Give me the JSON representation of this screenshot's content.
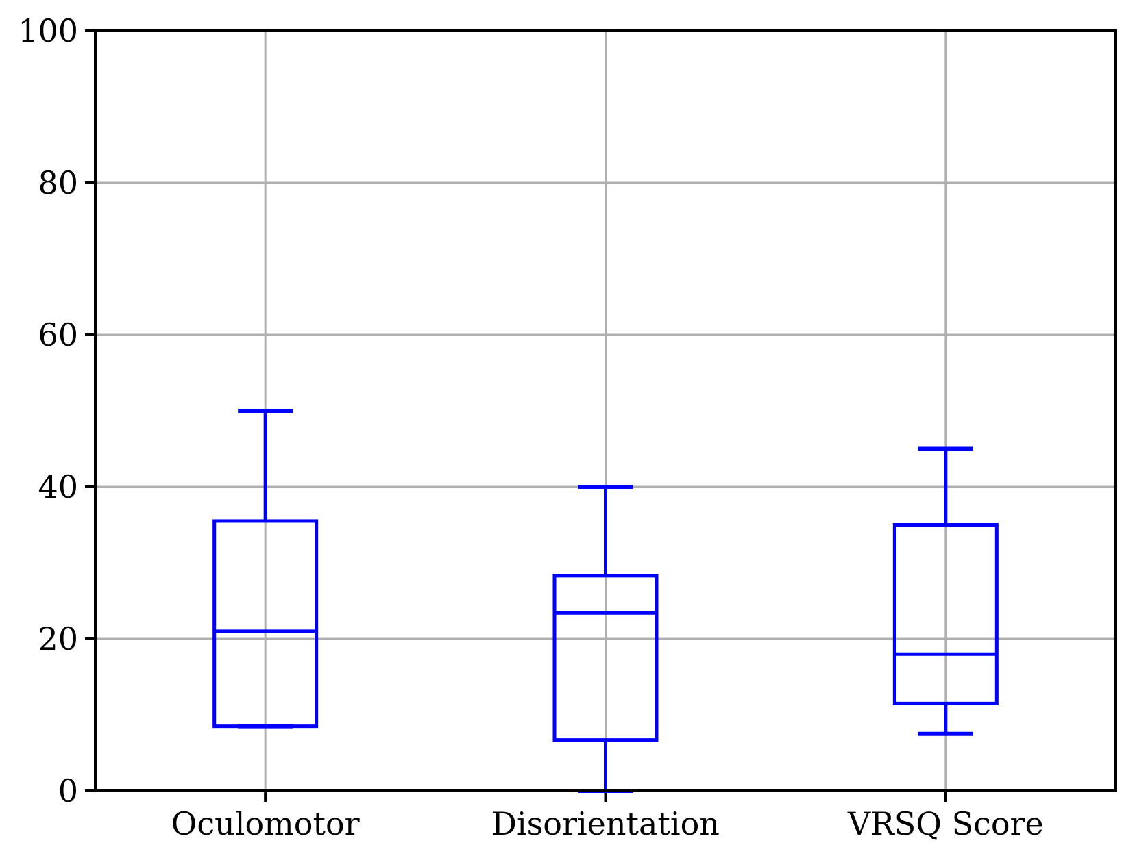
{
  "chart_data": {
    "type": "boxplot",
    "title": "",
    "xlabel": "",
    "ylabel": "",
    "categories": [
      "Oculomotor",
      "Disorientation",
      "VRSQ Score"
    ],
    "series": [
      {
        "name": "Oculomotor",
        "whisker_low": 8.5,
        "q1": 8.5,
        "median": 21,
        "q3": 35.5,
        "whisker_high": 50
      },
      {
        "name": "Disorientation",
        "whisker_low": 0,
        "q1": 6.7,
        "median": 23.4,
        "q3": 28.3,
        "whisker_high": 40
      },
      {
        "name": "VRSQ Score",
        "whisker_low": 7.5,
        "q1": 11.5,
        "median": 18,
        "q3": 35,
        "whisker_high": 45
      }
    ],
    "ylim": [
      0,
      100
    ],
    "yticks": [
      0,
      20,
      40,
      60,
      80,
      100
    ],
    "grid": true,
    "legend": "none",
    "colors": {
      "box": "#0000ff",
      "grid": "#b0b0b0",
      "axis": "#000000",
      "background": "#ffffff"
    }
  }
}
